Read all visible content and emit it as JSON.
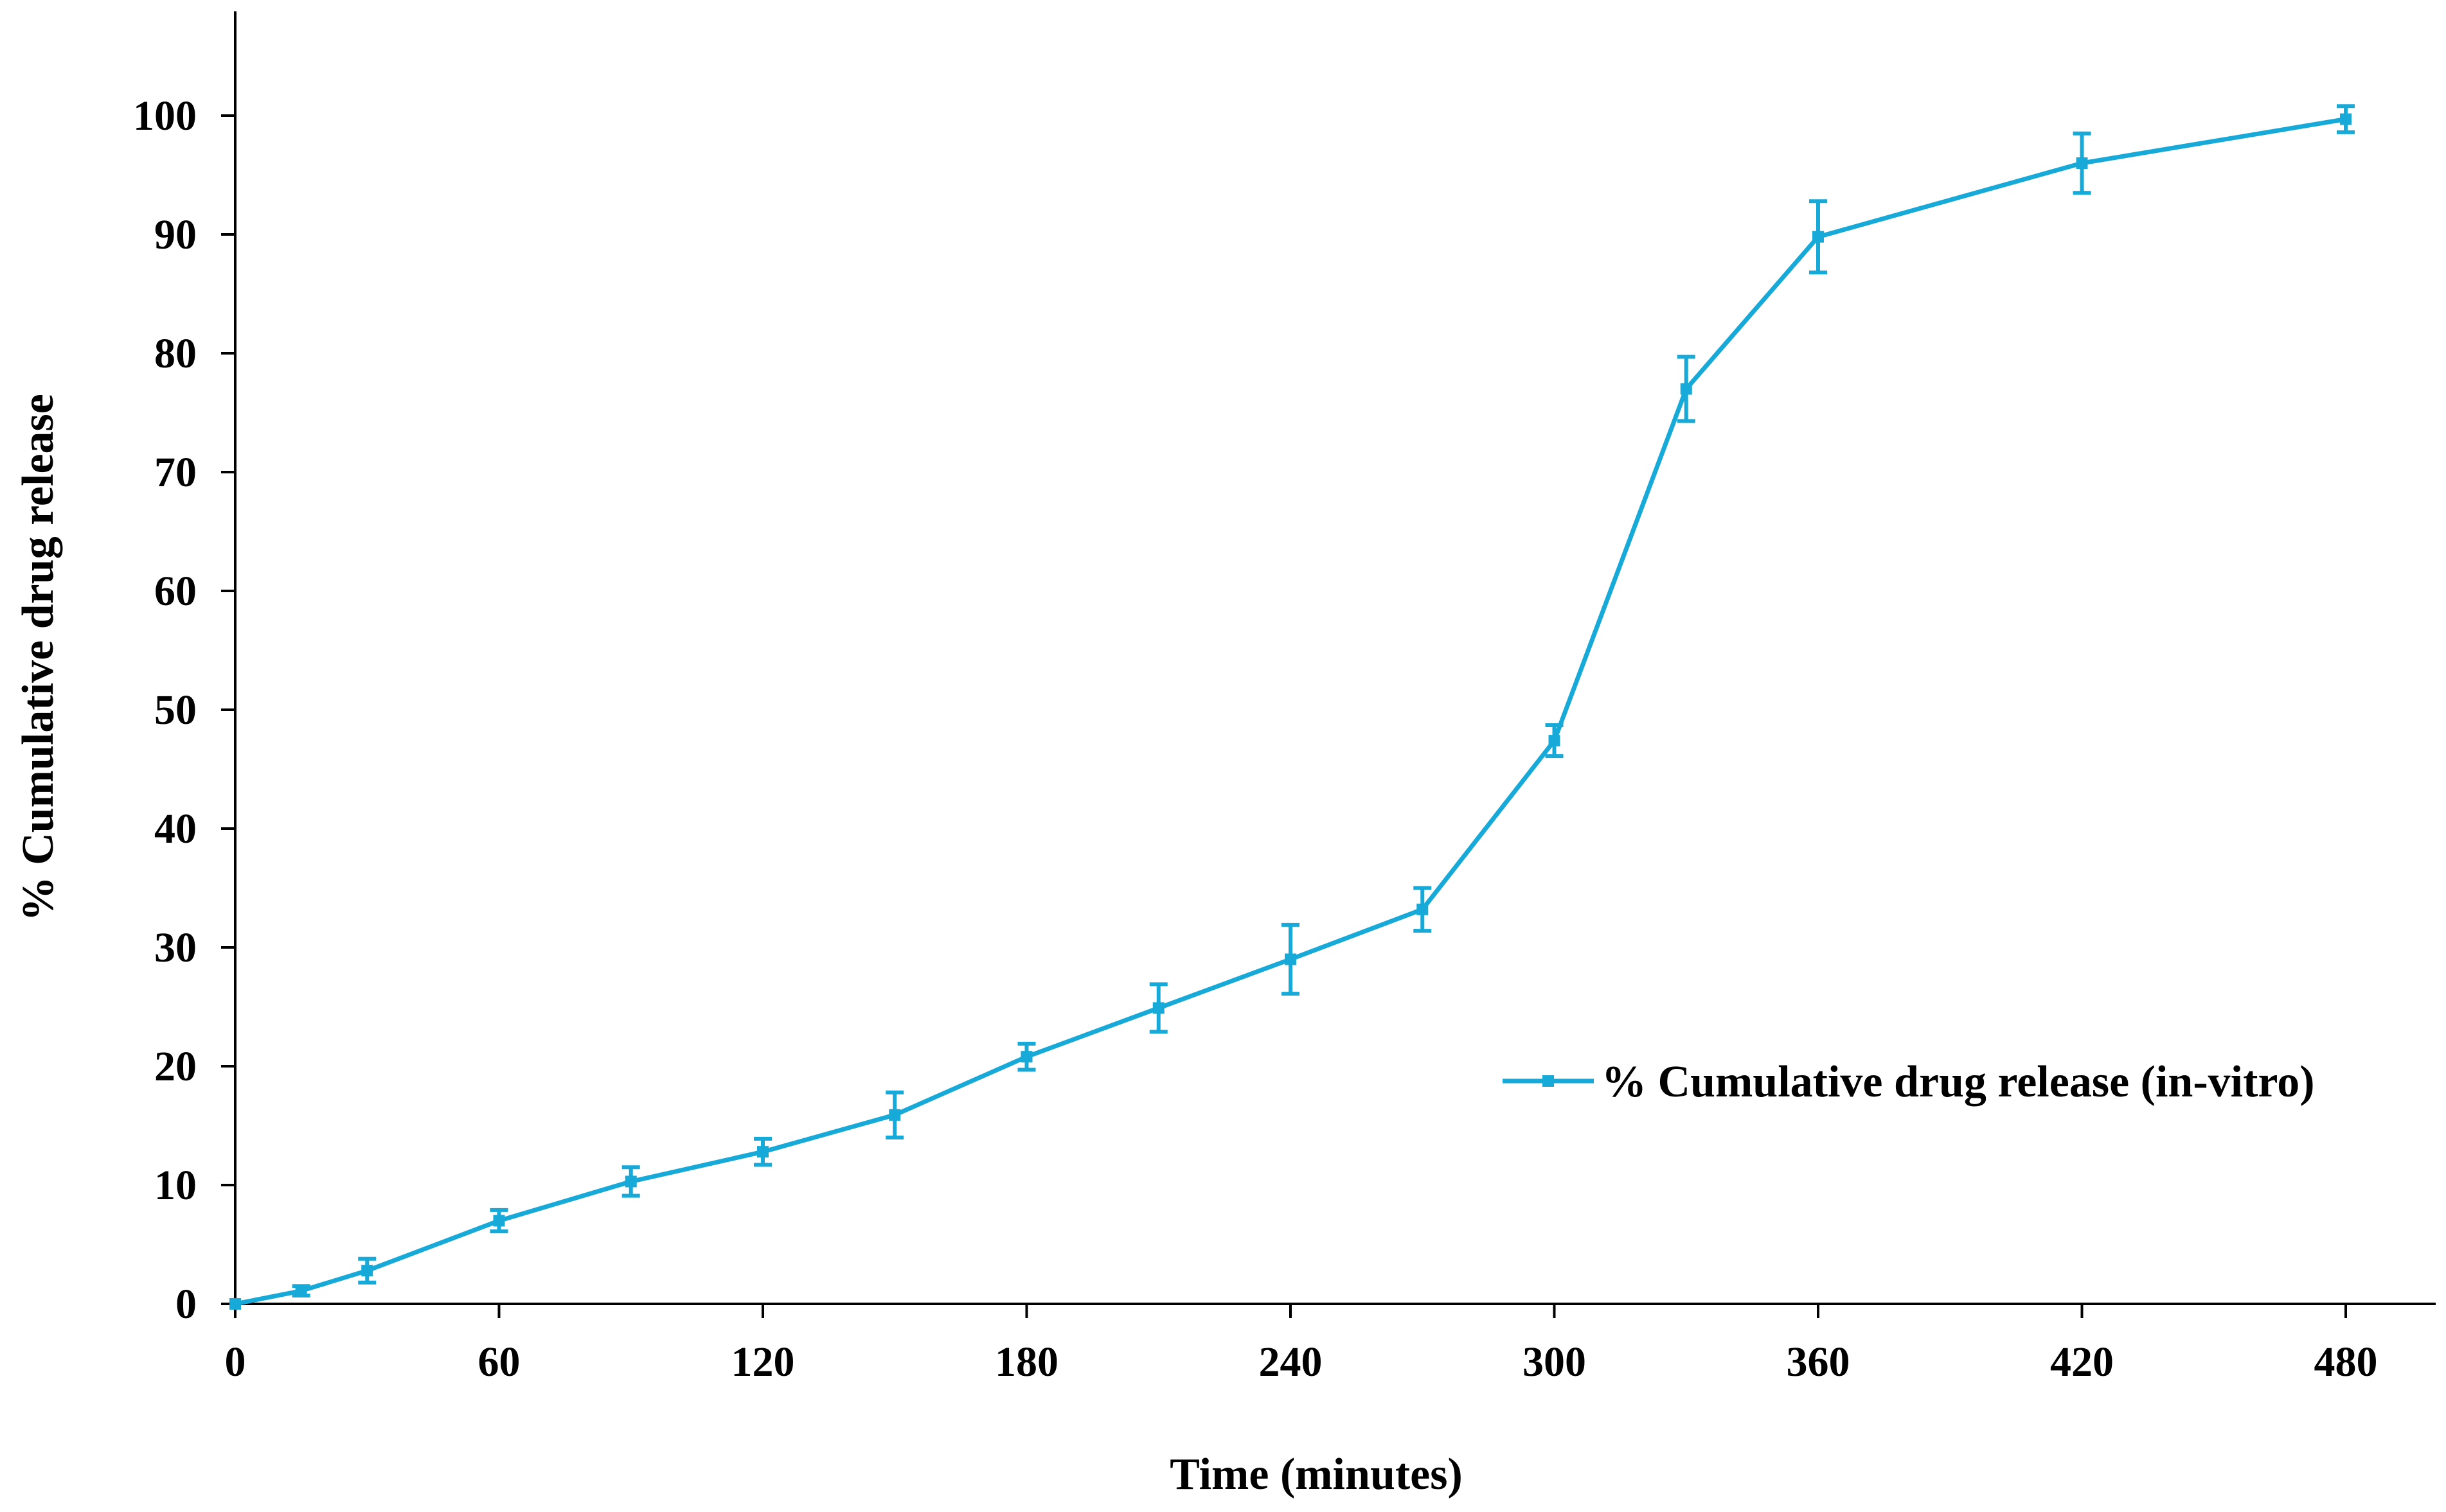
{
  "colors": {
    "series": "#17AAD8",
    "axis": "#000000",
    "background": "#ffffff"
  },
  "chart_data": {
    "type": "line",
    "title": "",
    "xlabel": "Time (minutes)",
    "ylabel": "% Cumulative drug release",
    "xlim": [
      0,
      495
    ],
    "ylim": [
      0,
      105
    ],
    "x_ticks": [
      0,
      60,
      120,
      180,
      240,
      300,
      360,
      420,
      480
    ],
    "y_ticks": [
      0,
      10,
      20,
      30,
      40,
      50,
      60,
      70,
      80,
      90,
      100
    ],
    "grid": false,
    "legend": {
      "position": "center-right",
      "entries": [
        "% Cumulative drug release (in-vitro)"
      ]
    },
    "series": [
      {
        "name": "% Cumulative drug release (in-vitro)",
        "x": [
          0,
          15,
          30,
          60,
          90,
          120,
          150,
          180,
          210,
          240,
          270,
          300,
          330,
          360,
          420,
          480
        ],
        "y": [
          0,
          1.1,
          2.8,
          7.0,
          10.3,
          12.8,
          15.9,
          20.8,
          24.9,
          29.0,
          33.2,
          47.4,
          77.0,
          89.8,
          96.0,
          99.7
        ],
        "error": [
          0,
          0.4,
          1.0,
          0.9,
          1.2,
          1.1,
          1.9,
          1.1,
          2.0,
          2.9,
          1.8,
          1.3,
          2.7,
          3.0,
          2.5,
          1.1
        ]
      }
    ]
  }
}
